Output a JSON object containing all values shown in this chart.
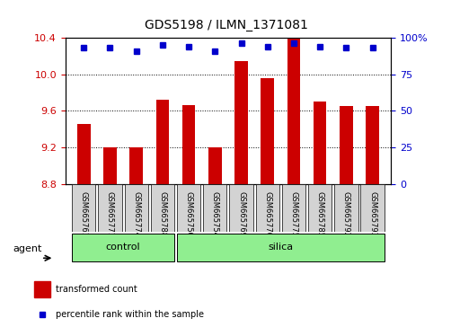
{
  "title": "GDS5198 / ILMN_1371081",
  "samples": [
    "GSM665761",
    "GSM665771",
    "GSM665774",
    "GSM665788",
    "GSM665750",
    "GSM665754",
    "GSM665769",
    "GSM665770",
    "GSM665775",
    "GSM665785",
    "GSM665792",
    "GSM665793"
  ],
  "red_values": [
    9.46,
    9.2,
    9.2,
    9.72,
    9.66,
    9.2,
    10.14,
    9.96,
    10.46,
    9.7,
    9.65,
    9.65
  ],
  "blue_values": [
    93,
    93,
    91,
    95,
    94,
    91,
    96,
    94,
    96,
    94,
    93,
    93
  ],
  "control_samples": [
    "GSM665761",
    "GSM665771",
    "GSM665774",
    "GSM665788"
  ],
  "silica_samples": [
    "GSM665750",
    "GSM665754",
    "GSM665769",
    "GSM665770",
    "GSM665775",
    "GSM665785",
    "GSM665792",
    "GSM665793"
  ],
  "ylim_left": [
    8.8,
    10.4
  ],
  "ylim_right": [
    0,
    100
  ],
  "yticks_left": [
    8.8,
    9.2,
    9.6,
    10.0,
    10.4
  ],
  "yticks_right": [
    0,
    25,
    50,
    75,
    100
  ],
  "ytick_labels_right": [
    "0",
    "25",
    "50",
    "75",
    "100%"
  ],
  "bar_color": "#cc0000",
  "dot_color": "#0000cc",
  "bar_width": 0.5,
  "control_bg": "#90ee90",
  "silica_bg": "#90ee90",
  "sample_bg": "#d3d3d3",
  "agent_label": "agent",
  "control_label": "control",
  "silica_label": "silica",
  "legend_red": "transformed count",
  "legend_blue": "percentile rank within the sample",
  "grid_linestyle": "dotted"
}
